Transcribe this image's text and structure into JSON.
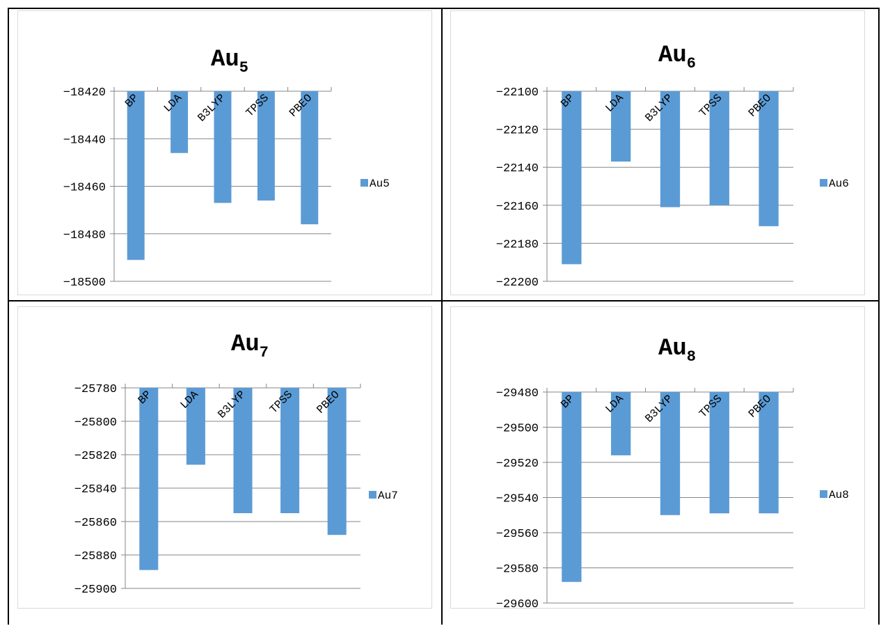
{
  "chart_data": [
    {
      "type": "bar",
      "title_base": "Au",
      "title_sub": "5",
      "categories": [
        "BP",
        "LDA",
        "B3LYP",
        "TPSS",
        "PBEO"
      ],
      "series": [
        {
          "name": "Au5",
          "values": [
            -18491,
            -18446,
            -18467,
            -18466,
            -18476
          ]
        }
      ],
      "yticks": [
        "-18420",
        "-18440",
        "-18460",
        "-18480",
        "-18500"
      ],
      "ylim": [
        -18500,
        -18420
      ],
      "grid": true,
      "legend": "right",
      "color": "#5b9bd5"
    },
    {
      "type": "bar",
      "title_base": "Au",
      "title_sub": "6",
      "categories": [
        "BP",
        "LDA",
        "B3LYP",
        "TPSS",
        "PBEO"
      ],
      "series": [
        {
          "name": "Au6",
          "values": [
            -22191,
            -22137,
            -22161,
            -22160,
            -22171
          ]
        }
      ],
      "yticks": [
        "-22100",
        "-22120",
        "-22140",
        "-22160",
        "-22180",
        "-22200"
      ],
      "ylim": [
        -22200,
        -22100
      ],
      "grid": true,
      "legend": "right",
      "color": "#5b9bd5"
    },
    {
      "type": "bar",
      "title_base": "Au",
      "title_sub": "7",
      "categories": [
        "BP",
        "LDA",
        "B3LYP",
        "TPSS",
        "PBEO"
      ],
      "series": [
        {
          "name": "Au7",
          "values": [
            -25889,
            -25826,
            -25855,
            -25855,
            -25868
          ]
        }
      ],
      "yticks": [
        "-25780",
        "-25800",
        "-25820",
        "-25840",
        "-25860",
        "-25880",
        "-25900"
      ],
      "ylim": [
        -25900,
        -25780
      ],
      "grid": true,
      "legend": "right",
      "color": "#5b9bd5"
    },
    {
      "type": "bar",
      "title_base": "Au",
      "title_sub": "8",
      "categories": [
        "BP",
        "LDA",
        "B3LYP",
        "TPSS",
        "PBEO"
      ],
      "series": [
        {
          "name": "Au8",
          "values": [
            -29588,
            -29516,
            -29550,
            -29549,
            -29549
          ]
        }
      ],
      "yticks": [
        "-29480",
        "-29500",
        "-29520",
        "-29540",
        "-29560",
        "-29580",
        "-29600"
      ],
      "ylim": [
        -29600,
        -29480
      ],
      "grid": true,
      "legend": "right",
      "color": "#5b9bd5"
    }
  ]
}
